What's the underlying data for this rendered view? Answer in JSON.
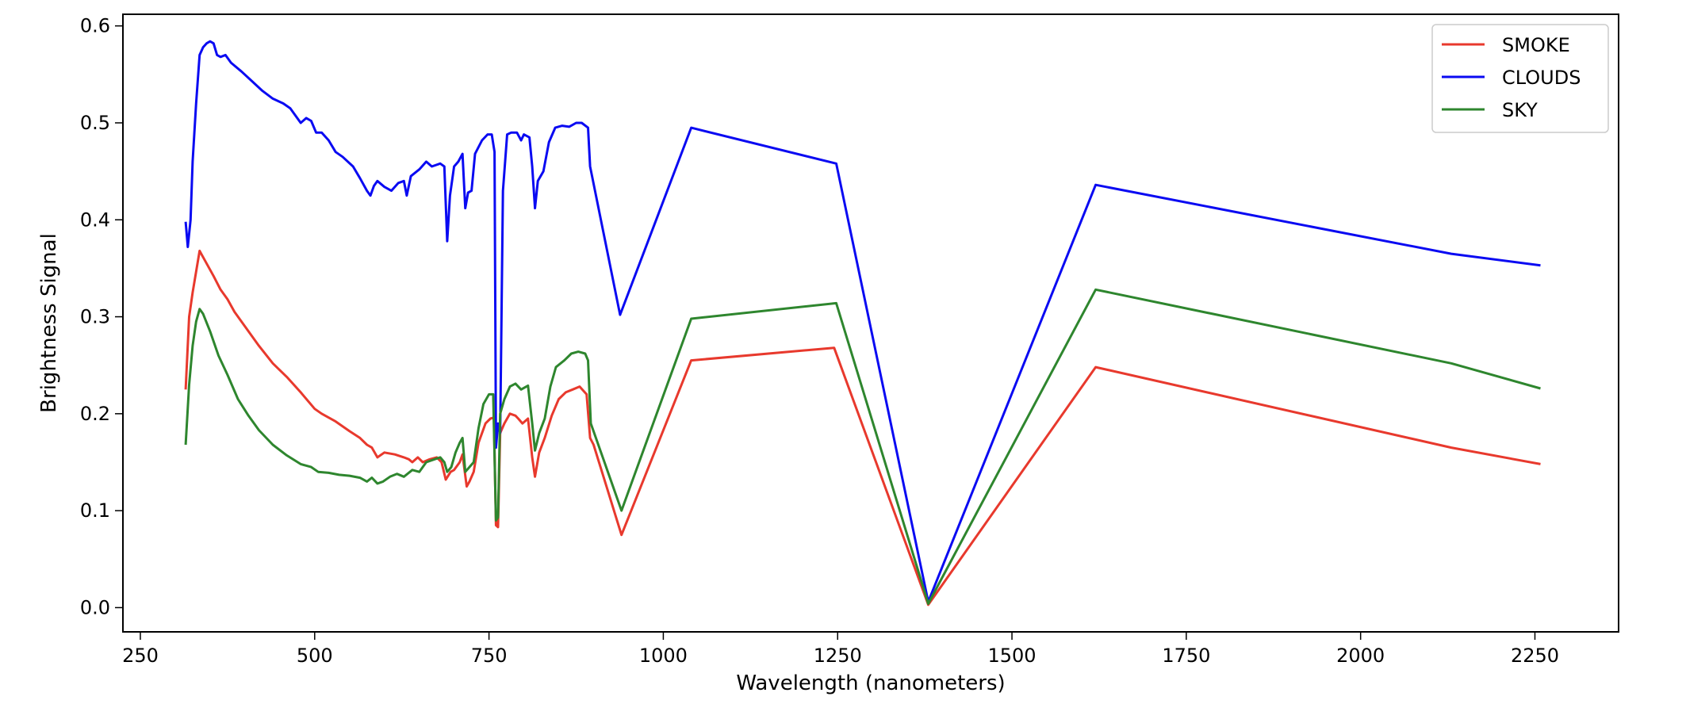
{
  "chart_data": {
    "type": "line",
    "title": "",
    "xlabel": "Wavelength (nanometers)",
    "ylabel": "Brightness Signal",
    "xlim": [
      225,
      2370
    ],
    "ylim": [
      -0.025,
      0.612
    ],
    "xticks": [
      250,
      500,
      750,
      1000,
      1250,
      1500,
      1750,
      2000,
      2250
    ],
    "yticks": [
      0.0,
      0.1,
      0.2,
      0.3,
      0.4,
      0.5,
      0.6
    ],
    "xtick_labels": [
      "250",
      "500",
      "750",
      "1000",
      "1250",
      "1500",
      "1750",
      "2000",
      "2250"
    ],
    "ytick_labels": [
      "0.0",
      "0.1",
      "0.2",
      "0.3",
      "0.4",
      "0.5",
      "0.6"
    ],
    "grid": false,
    "legend_position": "top-right",
    "series": [
      {
        "name": "SMOKE",
        "color": "#e8392d",
        "points": [
          [
            315,
            0.225
          ],
          [
            320,
            0.3
          ],
          [
            325,
            0.325
          ],
          [
            335,
            0.368
          ],
          [
            345,
            0.355
          ],
          [
            355,
            0.342
          ],
          [
            365,
            0.328
          ],
          [
            375,
            0.318
          ],
          [
            385,
            0.305
          ],
          [
            400,
            0.29
          ],
          [
            420,
            0.27
          ],
          [
            440,
            0.252
          ],
          [
            460,
            0.238
          ],
          [
            480,
            0.222
          ],
          [
            500,
            0.205
          ],
          [
            510,
            0.2
          ],
          [
            530,
            0.192
          ],
          [
            550,
            0.182
          ],
          [
            565,
            0.175
          ],
          [
            575,
            0.168
          ],
          [
            582,
            0.165
          ],
          [
            590,
            0.155
          ],
          [
            600,
            0.16
          ],
          [
            615,
            0.158
          ],
          [
            628,
            0.155
          ],
          [
            635,
            0.153
          ],
          [
            640,
            0.15
          ],
          [
            648,
            0.155
          ],
          [
            655,
            0.15
          ],
          [
            665,
            0.153
          ],
          [
            675,
            0.155
          ],
          [
            682,
            0.15
          ],
          [
            688,
            0.132
          ],
          [
            695,
            0.14
          ],
          [
            700,
            0.142
          ],
          [
            708,
            0.15
          ],
          [
            712,
            0.158
          ],
          [
            718,
            0.125
          ],
          [
            722,
            0.13
          ],
          [
            728,
            0.14
          ],
          [
            735,
            0.17
          ],
          [
            745,
            0.19
          ],
          [
            752,
            0.195
          ],
          [
            757,
            0.196
          ],
          [
            760,
            0.085
          ],
          [
            763,
            0.083
          ],
          [
            766,
            0.18
          ],
          [
            772,
            0.19
          ],
          [
            780,
            0.2
          ],
          [
            788,
            0.198
          ],
          [
            792,
            0.195
          ],
          [
            798,
            0.19
          ],
          [
            806,
            0.195
          ],
          [
            812,
            0.155
          ],
          [
            816,
            0.135
          ],
          [
            822,
            0.16
          ],
          [
            830,
            0.175
          ],
          [
            840,
            0.198
          ],
          [
            850,
            0.215
          ],
          [
            860,
            0.222
          ],
          [
            870,
            0.225
          ],
          [
            880,
            0.228
          ],
          [
            890,
            0.22
          ],
          [
            895,
            0.175
          ],
          [
            900,
            0.168
          ],
          [
            940,
            0.075
          ],
          [
            1040,
            0.255
          ],
          [
            1245,
            0.268
          ],
          [
            1380,
            0.003
          ],
          [
            1620,
            0.248
          ],
          [
            2130,
            0.165
          ],
          [
            2258,
            0.148
          ]
        ]
      },
      {
        "name": "CLOUDS",
        "color": "#0a0af2",
        "points": [
          [
            315,
            0.398
          ],
          [
            318,
            0.372
          ],
          [
            322,
            0.4
          ],
          [
            325,
            0.46
          ],
          [
            330,
            0.52
          ],
          [
            335,
            0.57
          ],
          [
            340,
            0.578
          ],
          [
            345,
            0.582
          ],
          [
            350,
            0.584
          ],
          [
            355,
            0.582
          ],
          [
            360,
            0.57
          ],
          [
            365,
            0.568
          ],
          [
            372,
            0.57
          ],
          [
            380,
            0.562
          ],
          [
            395,
            0.553
          ],
          [
            410,
            0.543
          ],
          [
            425,
            0.533
          ],
          [
            440,
            0.525
          ],
          [
            455,
            0.52
          ],
          [
            465,
            0.515
          ],
          [
            472,
            0.508
          ],
          [
            480,
            0.5
          ],
          [
            488,
            0.505
          ],
          [
            495,
            0.502
          ],
          [
            502,
            0.49
          ],
          [
            510,
            0.49
          ],
          [
            520,
            0.482
          ],
          [
            530,
            0.47
          ],
          [
            540,
            0.465
          ],
          [
            555,
            0.455
          ],
          [
            565,
            0.443
          ],
          [
            575,
            0.43
          ],
          [
            580,
            0.425
          ],
          [
            585,
            0.435
          ],
          [
            590,
            0.44
          ],
          [
            600,
            0.434
          ],
          [
            610,
            0.43
          ],
          [
            620,
            0.438
          ],
          [
            628,
            0.44
          ],
          [
            632,
            0.425
          ],
          [
            638,
            0.445
          ],
          [
            650,
            0.452
          ],
          [
            660,
            0.46
          ],
          [
            668,
            0.455
          ],
          [
            680,
            0.458
          ],
          [
            686,
            0.455
          ],
          [
            690,
            0.378
          ],
          [
            694,
            0.425
          ],
          [
            700,
            0.455
          ],
          [
            706,
            0.46
          ],
          [
            712,
            0.468
          ],
          [
            716,
            0.412
          ],
          [
            720,
            0.428
          ],
          [
            725,
            0.43
          ],
          [
            730,
            0.468
          ],
          [
            740,
            0.482
          ],
          [
            748,
            0.488
          ],
          [
            754,
            0.488
          ],
          [
            758,
            0.47
          ],
          [
            760,
            0.165
          ],
          [
            763,
            0.19
          ],
          [
            766,
            0.18
          ],
          [
            770,
            0.43
          ],
          [
            776,
            0.488
          ],
          [
            782,
            0.49
          ],
          [
            790,
            0.49
          ],
          [
            796,
            0.482
          ],
          [
            800,
            0.488
          ],
          [
            808,
            0.485
          ],
          [
            812,
            0.455
          ],
          [
            816,
            0.412
          ],
          [
            820,
            0.44
          ],
          [
            828,
            0.45
          ],
          [
            836,
            0.48
          ],
          [
            845,
            0.495
          ],
          [
            855,
            0.497
          ],
          [
            865,
            0.496
          ],
          [
            875,
            0.5
          ],
          [
            883,
            0.5
          ],
          [
            892,
            0.495
          ],
          [
            895,
            0.455
          ],
          [
            938,
            0.302
          ],
          [
            1040,
            0.495
          ],
          [
            1248,
            0.458
          ],
          [
            1380,
            0.006
          ],
          [
            1620,
            0.436
          ],
          [
            2130,
            0.365
          ],
          [
            2258,
            0.353
          ]
        ]
      },
      {
        "name": "SKY",
        "color": "#2e862e",
        "points": [
          [
            315,
            0.168
          ],
          [
            320,
            0.23
          ],
          [
            325,
            0.27
          ],
          [
            330,
            0.295
          ],
          [
            335,
            0.308
          ],
          [
            340,
            0.303
          ],
          [
            350,
            0.285
          ],
          [
            362,
            0.26
          ],
          [
            375,
            0.24
          ],
          [
            390,
            0.215
          ],
          [
            405,
            0.198
          ],
          [
            420,
            0.183
          ],
          [
            440,
            0.168
          ],
          [
            460,
            0.157
          ],
          [
            480,
            0.148
          ],
          [
            495,
            0.145
          ],
          [
            505,
            0.14
          ],
          [
            520,
            0.139
          ],
          [
            535,
            0.137
          ],
          [
            550,
            0.136
          ],
          [
            565,
            0.134
          ],
          [
            575,
            0.13
          ],
          [
            582,
            0.134
          ],
          [
            590,
            0.128
          ],
          [
            598,
            0.13
          ],
          [
            608,
            0.135
          ],
          [
            618,
            0.138
          ],
          [
            628,
            0.135
          ],
          [
            640,
            0.142
          ],
          [
            650,
            0.14
          ],
          [
            660,
            0.15
          ],
          [
            672,
            0.153
          ],
          [
            680,
            0.155
          ],
          [
            686,
            0.15
          ],
          [
            690,
            0.14
          ],
          [
            696,
            0.145
          ],
          [
            702,
            0.16
          ],
          [
            708,
            0.17
          ],
          [
            712,
            0.175
          ],
          [
            716,
            0.14
          ],
          [
            722,
            0.145
          ],
          [
            728,
            0.15
          ],
          [
            735,
            0.185
          ],
          [
            742,
            0.21
          ],
          [
            750,
            0.22
          ],
          [
            756,
            0.22
          ],
          [
            760,
            0.09
          ],
          [
            763,
            0.093
          ],
          [
            766,
            0.2
          ],
          [
            772,
            0.215
          ],
          [
            780,
            0.228
          ],
          [
            788,
            0.231
          ],
          [
            796,
            0.225
          ],
          [
            806,
            0.229
          ],
          [
            812,
            0.19
          ],
          [
            816,
            0.162
          ],
          [
            822,
            0.18
          ],
          [
            830,
            0.195
          ],
          [
            838,
            0.228
          ],
          [
            846,
            0.248
          ],
          [
            858,
            0.255
          ],
          [
            868,
            0.262
          ],
          [
            878,
            0.264
          ],
          [
            888,
            0.262
          ],
          [
            892,
            0.255
          ],
          [
            896,
            0.19
          ],
          [
            940,
            0.1
          ],
          [
            1040,
            0.298
          ],
          [
            1248,
            0.314
          ],
          [
            1380,
            0.004
          ],
          [
            1620,
            0.328
          ],
          [
            2130,
            0.252
          ],
          [
            2258,
            0.226
          ]
        ]
      }
    ]
  }
}
